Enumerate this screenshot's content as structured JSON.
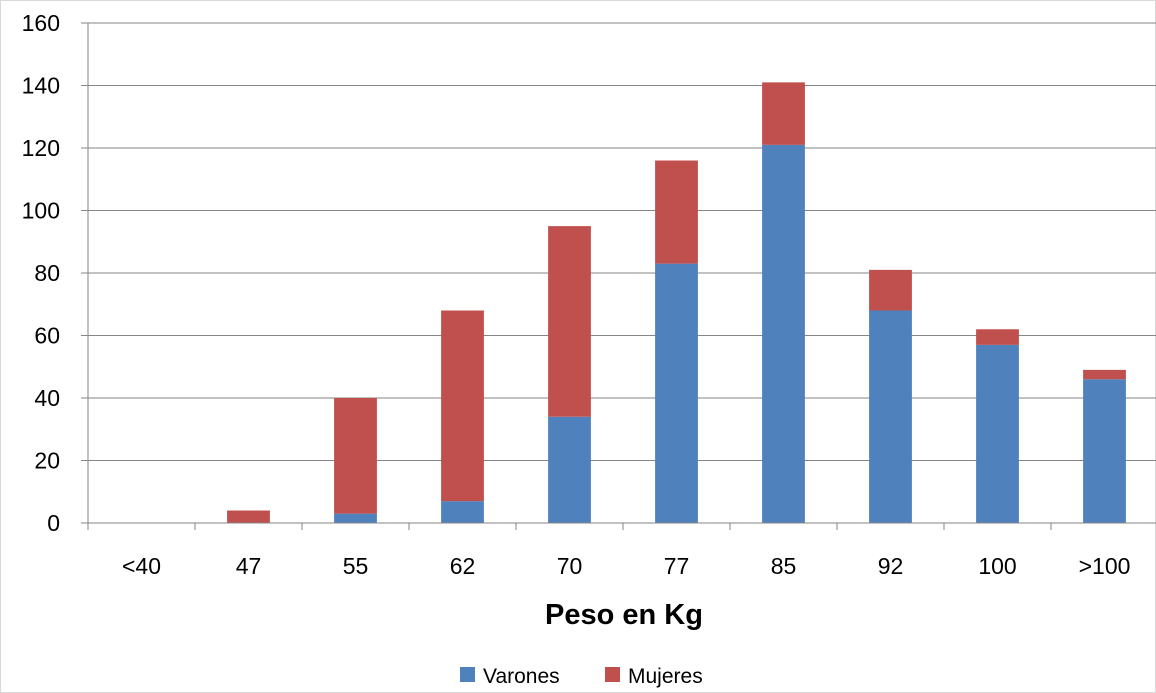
{
  "chart_data": {
    "type": "bar",
    "stacked": true,
    "categories": [
      "<40",
      "47",
      "55",
      "62",
      "70",
      "77",
      "85",
      "92",
      "100",
      ">100"
    ],
    "series": [
      {
        "name": "Varones",
        "color": "#4F81BD",
        "values": [
          0,
          0,
          3,
          7,
          34,
          83,
          121,
          68,
          57,
          46
        ]
      },
      {
        "name": "Mujeres",
        "color": "#C0504D",
        "values": [
          0,
          4,
          37,
          61,
          61,
          33,
          20,
          13,
          5,
          3
        ]
      }
    ],
    "title": "",
    "xlabel": "Peso en Kg",
    "ylabel": "",
    "ylim": [
      0,
      160
    ],
    "yticks": [
      0,
      20,
      40,
      60,
      80,
      100,
      120,
      140,
      160
    ],
    "grid": true,
    "legend": "bottom"
  }
}
